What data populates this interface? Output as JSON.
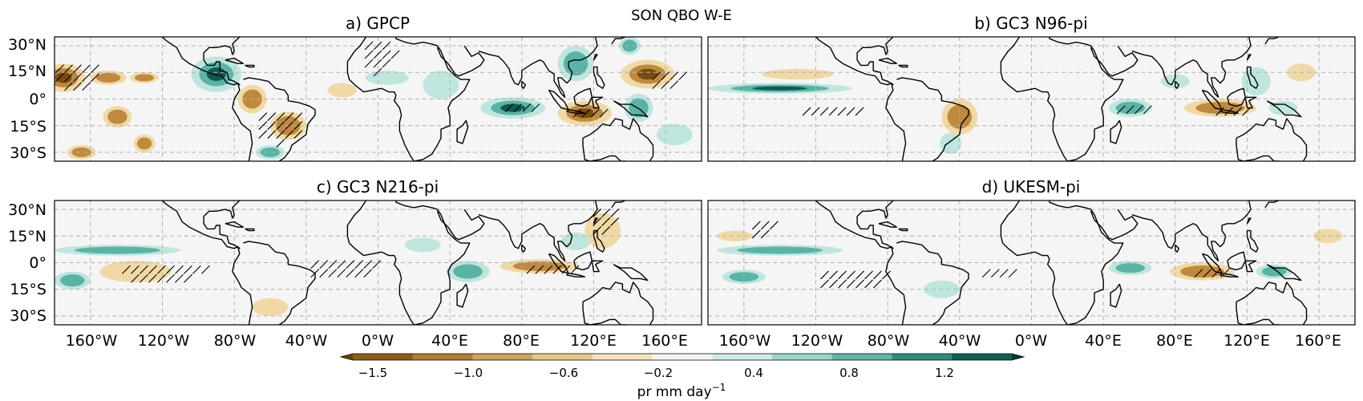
{
  "figure": {
    "suptitle": "SON QBO W-E",
    "colors": {
      "background": "#f4f5f4",
      "frame": "#000000",
      "grid": "#b0b0b0",
      "dry_dark": "#7a4c0a",
      "dry_mid": "#c08a3e",
      "dry_light": "#f0d9a4",
      "wet_light": "#bfe6de",
      "wet_mid": "#5ab4a6",
      "wet_dark": "#0d5a52"
    },
    "panels": [
      {
        "id": "a",
        "title": "a) GPCP",
        "anomalies": [
          {
            "lon": -175,
            "lat": 12,
            "rlon": 12,
            "rlat": 8,
            "v": -1.5
          },
          {
            "lon": -150,
            "lat": 12,
            "rlon": 10,
            "rlat": 4,
            "v": -1.0
          },
          {
            "lon": -130,
            "lat": 12,
            "rlon": 8,
            "rlat": 3,
            "v": -1.2
          },
          {
            "lon": -90,
            "lat": 14,
            "rlon": 14,
            "rlat": 10,
            "v": 1.3
          },
          {
            "lon": -70,
            "lat": 0,
            "rlon": 8,
            "rlat": 8,
            "v": -0.8
          },
          {
            "lon": -50,
            "lat": -15,
            "rlon": 10,
            "rlat": 8,
            "v": -1.0
          },
          {
            "lon": -145,
            "lat": -10,
            "rlon": 8,
            "rlat": 6,
            "v": -0.8
          },
          {
            "lon": -130,
            "lat": -25,
            "rlon": 6,
            "rlat": 5,
            "v": -1.2
          },
          {
            "lon": -165,
            "lat": -30,
            "rlon": 8,
            "rlat": 4,
            "v": -0.9
          },
          {
            "lon": -60,
            "lat": -30,
            "rlon": 8,
            "rlat": 4,
            "v": 0.8
          },
          {
            "lon": 75,
            "lat": -5,
            "rlon": 18,
            "rlat": 6,
            "v": 1.4
          },
          {
            "lon": 35,
            "lat": 8,
            "rlon": 10,
            "rlat": 8,
            "v": 0.6
          },
          {
            "lon": 115,
            "lat": -8,
            "rlon": 15,
            "rlat": 7,
            "v": -1.6
          },
          {
            "lon": 150,
            "lat": 14,
            "rlon": 15,
            "rlat": 8,
            "v": -1.3
          },
          {
            "lon": 110,
            "lat": 20,
            "rlon": 10,
            "rlat": 10,
            "v": 0.9
          },
          {
            "lon": 140,
            "lat": 30,
            "rlon": 6,
            "rlat": 5,
            "v": 1.1
          },
          {
            "lon": 145,
            "lat": -5,
            "rlon": 8,
            "rlat": 8,
            "v": 0.8
          },
          {
            "lon": 165,
            "lat": -20,
            "rlon": 10,
            "rlat": 6,
            "v": 0.6
          },
          {
            "lon": 5,
            "lat": 12,
            "rlon": 12,
            "rlat": 4,
            "v": 0.5
          },
          {
            "lon": -20,
            "lat": 5,
            "rlon": 8,
            "rlat": 4,
            "v": -0.5
          }
        ],
        "hatch": [
          {
            "lon": -168,
            "lat": 14,
            "rlon": 14,
            "rlat": 8
          },
          {
            "lon": -55,
            "lat": -15,
            "rlon": 14,
            "rlat": 10
          },
          {
            "lon": 0,
            "lat": 25,
            "rlon": 10,
            "rlat": 10
          },
          {
            "lon": 80,
            "lat": -5,
            "rlon": 12,
            "rlat": 5
          },
          {
            "lon": 118,
            "lat": -8,
            "rlon": 12,
            "rlat": 5
          },
          {
            "lon": 160,
            "lat": 12,
            "rlon": 10,
            "rlat": 6
          }
        ]
      },
      {
        "id": "b",
        "title": "b) GC3 N96-pi",
        "anomalies": [
          {
            "lon": -140,
            "lat": 6,
            "rlon": 40,
            "rlat": 3,
            "v": 1.3
          },
          {
            "lon": -130,
            "lat": 14,
            "rlon": 20,
            "rlat": 3,
            "v": -0.7
          },
          {
            "lon": -40,
            "lat": -10,
            "rlon": 10,
            "rlat": 10,
            "v": -0.9
          },
          {
            "lon": -45,
            "lat": -25,
            "rlon": 6,
            "rlat": 6,
            "v": 0.7
          },
          {
            "lon": 55,
            "lat": -5,
            "rlon": 12,
            "rlat": 5,
            "v": 1.2
          },
          {
            "lon": 105,
            "lat": -5,
            "rlon": 20,
            "rlat": 5,
            "v": -1.0
          },
          {
            "lon": 125,
            "lat": 10,
            "rlon": 8,
            "rlat": 8,
            "v": 0.6
          },
          {
            "lon": 150,
            "lat": 15,
            "rlon": 8,
            "rlat": 5,
            "v": -0.6
          },
          {
            "lon": 140,
            "lat": -5,
            "rlon": 8,
            "rlat": 4,
            "v": 0.7
          },
          {
            "lon": 80,
            "lat": 10,
            "rlon": 8,
            "rlat": 4,
            "v": 0.4
          }
        ],
        "hatch": [
          {
            "lon": -150,
            "lat": 6,
            "rlon": 20,
            "rlat": 2
          },
          {
            "lon": -110,
            "lat": -5,
            "rlon": 20,
            "rlat": 3
          },
          {
            "lon": 55,
            "lat": -5,
            "rlon": 10,
            "rlat": 4
          },
          {
            "lon": 110,
            "lat": -6,
            "rlon": 10,
            "rlat": 4
          }
        ]
      },
      {
        "id": "c",
        "title": "c) GC3 N216-pi",
        "anomalies": [
          {
            "lon": -145,
            "lat": 7,
            "rlon": 35,
            "rlat": 3,
            "v": 1.2
          },
          {
            "lon": -135,
            "lat": -5,
            "rlon": 20,
            "rlat": 6,
            "v": -0.3
          },
          {
            "lon": -170,
            "lat": -10,
            "rlon": 10,
            "rlat": 5,
            "v": 0.8
          },
          {
            "lon": -60,
            "lat": -25,
            "rlon": 10,
            "rlat": 5,
            "v": -0.6
          },
          {
            "lon": 50,
            "lat": -5,
            "rlon": 12,
            "rlat": 6,
            "v": 1.0
          },
          {
            "lon": 90,
            "lat": -2,
            "rlon": 22,
            "rlat": 4,
            "v": -1.0
          },
          {
            "lon": 125,
            "lat": 18,
            "rlon": 10,
            "rlat": 10,
            "v": -0.6
          },
          {
            "lon": 110,
            "lat": 12,
            "rlon": 8,
            "rlat": 5,
            "v": 0.6
          },
          {
            "lon": 25,
            "lat": 10,
            "rlon": 10,
            "rlat": 4,
            "v": 0.4
          }
        ],
        "hatch": [
          {
            "lon": -120,
            "lat": -5,
            "rlon": 25,
            "rlat": 6
          },
          {
            "lon": -20,
            "lat": -2,
            "rlon": 20,
            "rlat": 6
          },
          {
            "lon": 95,
            "lat": -3,
            "rlon": 15,
            "rlat": 4
          },
          {
            "lon": 125,
            "lat": 25,
            "rlon": 8,
            "rlat": 8
          }
        ]
      },
      {
        "id": "d",
        "title": "d) UKESM-pi",
        "anomalies": [
          {
            "lon": -140,
            "lat": 7,
            "rlon": 35,
            "rlat": 3,
            "v": 1.0
          },
          {
            "lon": -165,
            "lat": 15,
            "rlon": 10,
            "rlat": 3,
            "v": -0.6
          },
          {
            "lon": -160,
            "lat": -8,
            "rlon": 12,
            "rlat": 4,
            "v": 1.0
          },
          {
            "lon": 55,
            "lat": -3,
            "rlon": 12,
            "rlat": 4,
            "v": 0.8
          },
          {
            "lon": 95,
            "lat": -5,
            "rlon": 18,
            "rlat": 5,
            "v": -1.0
          },
          {
            "lon": 135,
            "lat": -5,
            "rlon": 10,
            "rlat": 4,
            "v": 0.8
          },
          {
            "lon": 165,
            "lat": 15,
            "rlon": 8,
            "rlat": 4,
            "v": -0.6
          },
          {
            "lon": -50,
            "lat": -15,
            "rlon": 10,
            "rlat": 5,
            "v": 0.5
          }
        ],
        "hatch": [
          {
            "lon": -100,
            "lat": -8,
            "rlon": 20,
            "rlat": 6
          },
          {
            "lon": -20,
            "lat": -5,
            "rlon": 10,
            "rlat": 4
          },
          {
            "lon": 100,
            "lat": -5,
            "rlon": 12,
            "rlat": 4
          },
          {
            "lon": -150,
            "lat": 20,
            "rlon": 8,
            "rlat": 6
          }
        ]
      }
    ],
    "lon_ticks": [
      "160°W",
      "120°W",
      "80°W",
      "40°W",
      "0°W",
      "40°E",
      "80°E",
      "120°E",
      "160°E"
    ],
    "lat_ticks": [
      "30°N",
      "15°N",
      "0°",
      "15°S",
      "30°S"
    ],
    "colorbar": {
      "ticks": [
        "−1.5",
        "−1.0",
        "−0.6",
        "−0.2",
        "0.4",
        "0.8",
        "1.2"
      ],
      "label_main": "pr mm day",
      "label_sup": "−1",
      "bins": [
        "#6b3f06",
        "#8e5d16",
        "#b07c2e",
        "#cfa45c",
        "#e6c78a",
        "#f4e3bd",
        "#f5f5f2",
        "#cdebe4",
        "#98d4c8",
        "#5fb5a6",
        "#2e8c80",
        "#106058",
        "#003c30"
      ]
    }
  }
}
